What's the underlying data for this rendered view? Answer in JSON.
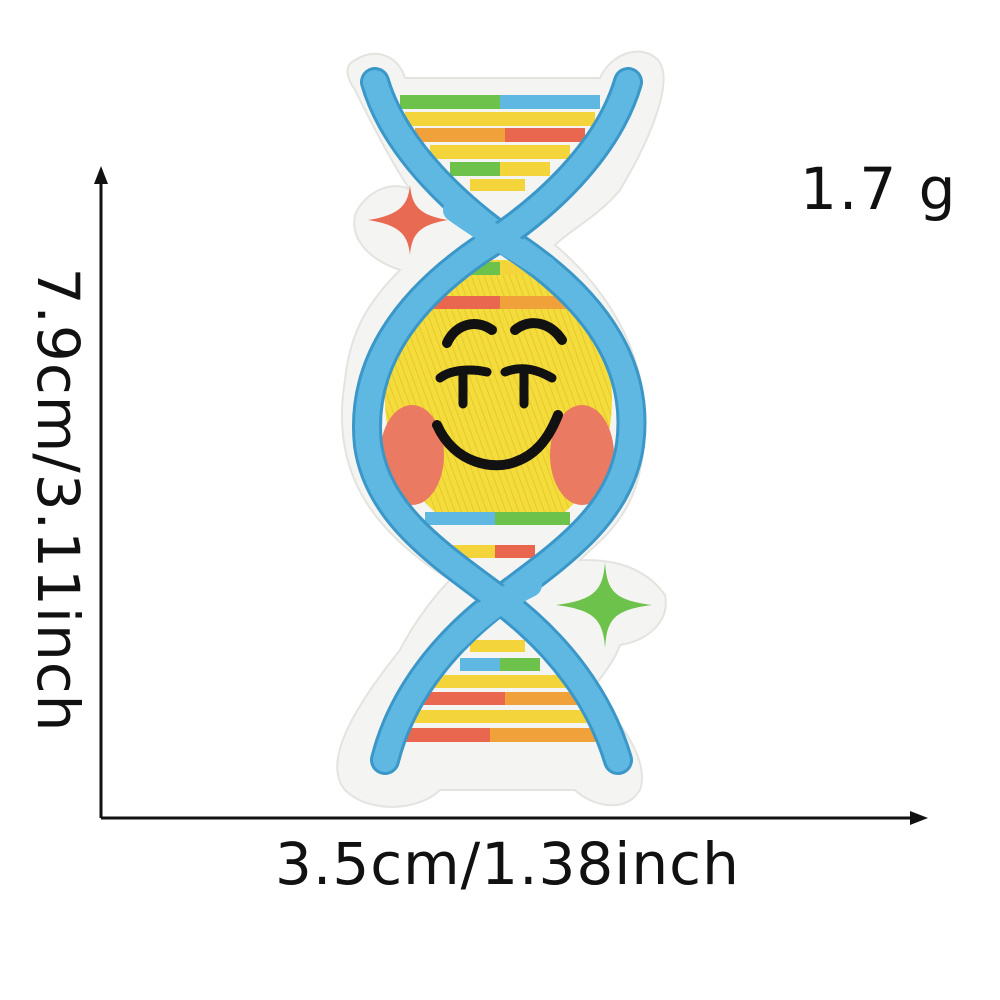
{
  "weight": "1.7 g",
  "dimensions": {
    "height": "7.9cm/3.11inch",
    "width": "3.5cm/1.38inch"
  },
  "product": {
    "name_icon": "dna-helix-smiley-patch-icon",
    "colors": {
      "strand": "#5fb8e2",
      "strand_dark": "#3a97c8",
      "felt": "#f4f4f2",
      "face": "#f4dc3c",
      "cheek": "#ea7a62",
      "rung_yellow": "#f3d43a",
      "rung_orange": "#f0a13a",
      "rung_red": "#e9674f",
      "rung_green": "#6cc24a",
      "rung_blue": "#5fb8e2",
      "sparkle_red": "#e96a52",
      "sparkle_green": "#6cc24a",
      "ink": "#111111"
    }
  }
}
